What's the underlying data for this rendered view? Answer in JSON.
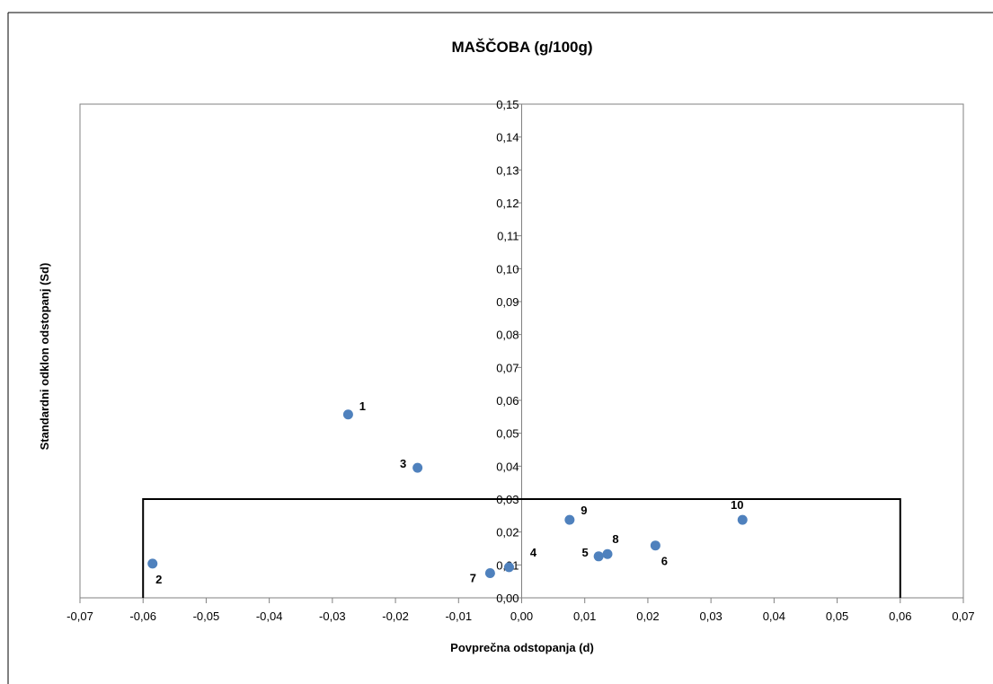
{
  "chart_data": {
    "type": "scatter",
    "title": "MAŠČOBA (g/100g)",
    "xlabel": "Povprečna odstopanja (d)",
    "ylabel": "Standardni odklon odstopanj (Sd)",
    "xlim": [
      -0.07,
      0.07
    ],
    "ylim": [
      0,
      0.15
    ],
    "x_ticks": [
      "-0,07",
      "-0,06",
      "-0,05",
      "-0,04",
      "-0,03",
      "-0,02",
      "-0,01",
      "0,00",
      "0,01",
      "0,02",
      "0,03",
      "0,04",
      "0,05",
      "0,06",
      "0,07"
    ],
    "y_ticks": [
      "0,00",
      "0,01",
      "0,02",
      "0,03",
      "0,04",
      "0,05",
      "0,06",
      "0,07",
      "0,08",
      "0,09",
      "0,10",
      "0,11",
      "0,12",
      "0,13",
      "0,14",
      "0,15"
    ],
    "grid": false,
    "legend": "none",
    "marker_color": "#4F81BD",
    "points": [
      {
        "label": "1",
        "x": -0.0275,
        "y": 0.0557
      },
      {
        "label": "2",
        "x": -0.0585,
        "y": 0.0104
      },
      {
        "label": "3",
        "x": -0.0165,
        "y": 0.0395
      },
      {
        "label": "4",
        "x": -0.002,
        "y": 0.0093
      },
      {
        "label": "5",
        "x": 0.0122,
        "y": 0.0126
      },
      {
        "label": "6",
        "x": 0.0212,
        "y": 0.0159
      },
      {
        "label": "7",
        "x": -0.005,
        "y": 0.0075
      },
      {
        "label": "8",
        "x": 0.0136,
        "y": 0.0133
      },
      {
        "label": "9",
        "x": 0.0076,
        "y": 0.0237
      },
      {
        "label": "10",
        "x": 0.035,
        "y": 0.0237
      }
    ],
    "acceptance_box": {
      "x_min": -0.06,
      "x_max": 0.06,
      "y_max": 0.03
    }
  }
}
